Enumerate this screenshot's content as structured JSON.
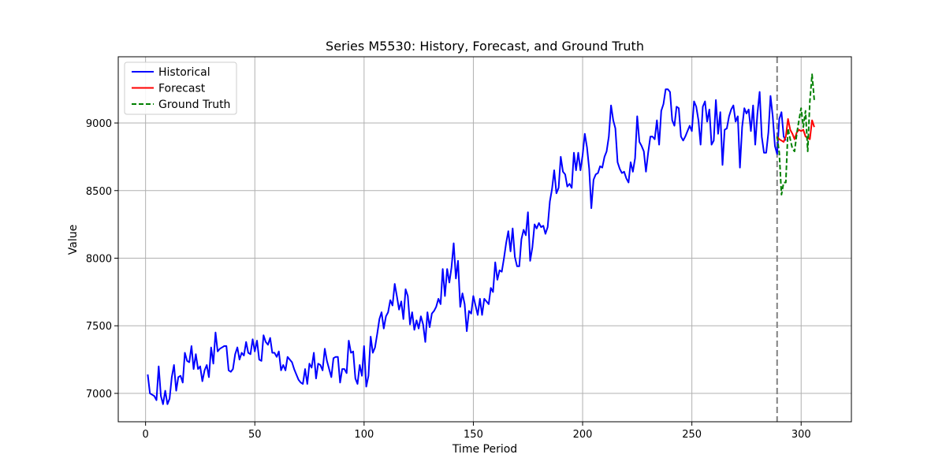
{
  "chart_data": {
    "type": "line",
    "title": "Series M5530: History, Forecast, and Ground Truth",
    "xlabel": "Time Period",
    "ylabel": "Value",
    "xlim": [
      -12.5,
      323
    ],
    "ylim": [
      6790,
      9490
    ],
    "xticks": [
      0,
      50,
      100,
      150,
      200,
      250,
      300
    ],
    "yticks": [
      7000,
      7500,
      8000,
      8500,
      9000
    ],
    "grid": true,
    "legend_position": "top-left",
    "forecast_start_marker": 289,
    "series": [
      {
        "name": "Historical",
        "color": "#0000ff",
        "style": "solid",
        "x_start": 1,
        "values": [
          7140,
          7000,
          6990,
          6980,
          6950,
          7200,
          6980,
          6920,
          7020,
          6920,
          6960,
          7120,
          7210,
          7020,
          7120,
          7130,
          7080,
          7300,
          7240,
          7230,
          7350,
          7180,
          7290,
          7180,
          7200,
          7090,
          7170,
          7210,
          7120,
          7340,
          7220,
          7450,
          7310,
          7330,
          7340,
          7350,
          7350,
          7170,
          7160,
          7180,
          7290,
          7340,
          7250,
          7300,
          7280,
          7380,
          7300,
          7290,
          7400,
          7310,
          7390,
          7250,
          7240,
          7430,
          7380,
          7360,
          7410,
          7300,
          7300,
          7270,
          7310,
          7170,
          7210,
          7170,
          7270,
          7250,
          7230,
          7180,
          7140,
          7100,
          7080,
          7070,
          7180,
          7070,
          7220,
          7190,
          7300,
          7110,
          7220,
          7210,
          7170,
          7330,
          7240,
          7180,
          7120,
          7260,
          7270,
          7270,
          7080,
          7180,
          7180,
          7150,
          7390,
          7300,
          7310,
          7110,
          7070,
          7210,
          7130,
          7350,
          7050,
          7130,
          7420,
          7300,
          7340,
          7440,
          7550,
          7600,
          7480,
          7570,
          7600,
          7690,
          7650,
          7810,
          7720,
          7620,
          7680,
          7550,
          7770,
          7720,
          7510,
          7600,
          7470,
          7540,
          7480,
          7570,
          7510,
          7380,
          7600,
          7490,
          7590,
          7610,
          7640,
          7700,
          7660,
          7920,
          7720,
          7920,
          7820,
          7930,
          8110,
          7850,
          7980,
          7640,
          7740,
          7660,
          7460,
          7610,
          7590,
          7720,
          7650,
          7580,
          7700,
          7580,
          7700,
          7680,
          7660,
          7780,
          7750,
          7970,
          7840,
          7910,
          7900,
          8000,
          8110,
          8200,
          8050,
          8220,
          8010,
          7940,
          7940,
          8140,
          8210,
          8170,
          8340,
          7980,
          8080,
          8250,
          8220,
          8260,
          8230,
          8240,
          8180,
          8230,
          8420,
          8510,
          8650,
          8480,
          8520,
          8750,
          8640,
          8620,
          8530,
          8550,
          8520,
          8780,
          8650,
          8780,
          8650,
          8760,
          8920,
          8820,
          8660,
          8370,
          8580,
          8620,
          8630,
          8680,
          8670,
          8750,
          8790,
          8900,
          9130,
          9020,
          8960,
          8710,
          8660,
          8630,
          8640,
          8590,
          8560,
          8710,
          8640,
          8740,
          9050,
          8860,
          8830,
          8790,
          8640,
          8780,
          8900,
          8900,
          8880,
          9020,
          8840,
          9090,
          9140,
          9250,
          9250,
          9230,
          9020,
          8980,
          9120,
          9110,
          8900,
          8870,
          8900,
          8940,
          8980,
          8940,
          9160,
          9120,
          9020,
          8840,
          9120,
          9160,
          9010,
          9100,
          8840,
          8870,
          9170,
          8920,
          9080,
          8690,
          8950,
          8960,
          9050,
          9100,
          9130,
          9010,
          9050,
          8670,
          8970,
          9110,
          9070,
          9100,
          8940,
          9130,
          8840,
          9070,
          9230,
          8900,
          8780,
          8780,
          8930,
          9200,
          9050,
          8830,
          8770,
          9030,
          9080,
          8900,
          8870
        ]
      },
      {
        "name": "Forecast",
        "color": "#ff0000",
        "style": "solid",
        "x_start": 289,
        "values": [
          8900,
          8880,
          8870,
          8860,
          8900,
          9030,
          8950,
          8920,
          8880,
          8930,
          8950,
          8940,
          8950,
          8900,
          8890,
          8880,
          9020,
          8970
        ]
      },
      {
        "name": "Ground Truth",
        "color": "#008000",
        "style": "dashed",
        "x_start": 289,
        "values": [
          8900,
          8780,
          8470,
          8560,
          8560,
          8960,
          8880,
          8810,
          8790,
          8920,
          9020,
          9110,
          8970,
          9090,
          8790,
          9160,
          9360,
          9170
        ]
      }
    ]
  }
}
